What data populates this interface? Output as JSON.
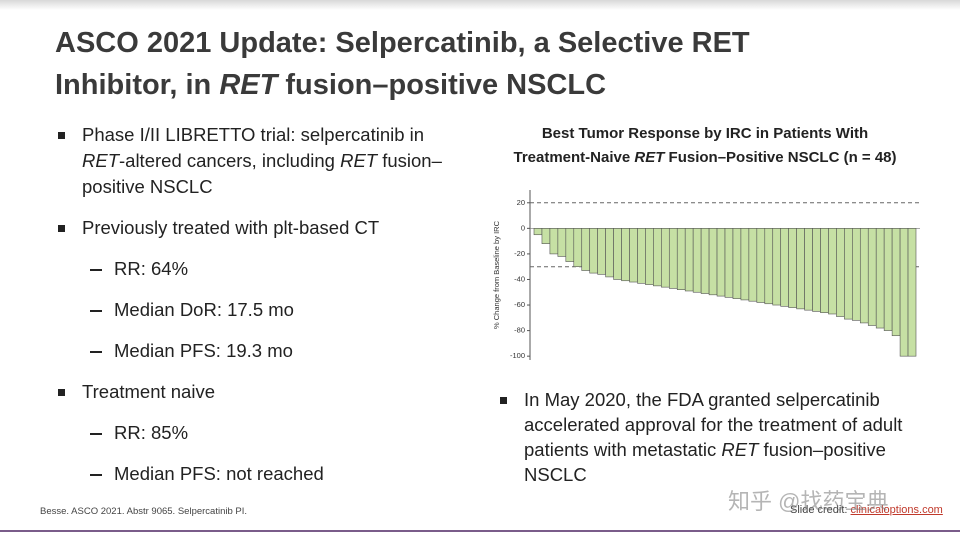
{
  "header": {
    "title": [
      [
        "ASCO 2021 Update: Selpercatinib, a Selective RET"
      ],
      [
        "Inhibitor, in ",
        {
          "text": "RET",
          "italic": true
        },
        " fusion–positive NSCLC"
      ]
    ]
  },
  "left_bullets": [
    {
      "level": 1,
      "runs": [
        "Phase I/II LIBRETTO trial: selpercatinib in ",
        {
          "text": "RET",
          "italic": true
        },
        "-altered cancers, including ",
        {
          "text": "RET",
          "italic": true
        },
        " fusion–positive NSCLC"
      ]
    },
    {
      "level": 1,
      "runs": [
        "Previously treated with plt-based CT"
      ]
    },
    {
      "level": 2,
      "runs": [
        "RR: 64%"
      ]
    },
    {
      "level": 2,
      "runs": [
        "Median DoR: 17.5 mo"
      ]
    },
    {
      "level": 2,
      "runs": [
        "Median PFS: 19.3 mo"
      ]
    },
    {
      "level": 1,
      "runs": [
        "Treatment naive"
      ]
    },
    {
      "level": 2,
      "runs": [
        "RR: 85%"
      ]
    },
    {
      "level": 2,
      "runs": [
        "Median PFS: not reached"
      ]
    }
  ],
  "right_bullets": [
    {
      "level": 1,
      "runs": [
        "In May 2020, the FDA granted selpercatinib accelerated approval for the treatment of adult patients with metastatic ",
        {
          "text": "RET",
          "italic": true
        },
        " fusion–positive NSCLC"
      ]
    }
  ],
  "chart_data": {
    "type": "waterfall",
    "title": [
      [
        "Best Tumor Response by IRC in Patients With"
      ],
      [
        "Treatment-Naive ",
        {
          "text": "RET",
          "italic": true
        },
        " Fusion–Positive NSCLC (n = 48)"
      ]
    ],
    "y_label": "% Change from Baseline by IRC",
    "values": [
      -5,
      -12,
      -20,
      -22,
      -26,
      -30,
      -33,
      -35,
      -36,
      -38,
      -40,
      -41,
      -42,
      -43,
      -44,
      -45,
      -46,
      -47,
      -48,
      -49,
      -50,
      -51,
      -52,
      -53,
      -54,
      -55,
      -56,
      -57,
      -58,
      -59,
      -60,
      -61,
      -62,
      -63,
      -64,
      -65,
      -66,
      -67,
      -69,
      -71,
      -72,
      -74,
      -76,
      -78,
      -80,
      -84,
      -100,
      -100
    ],
    "color": "#c6e0a4",
    "reference_lines": [
      20,
      -30
    ],
    "ylim": [
      -103,
      30
    ],
    "yticks": [
      20,
      0,
      -20,
      -40,
      -60,
      -80,
      -100
    ]
  },
  "footer": {
    "source": "Besse. ASCO 2021. Abstr 9065. Selpercatinib PI.",
    "credit": "Slide credit: ",
    "credit_link": "clinicaloptions.com",
    "watermark": "知乎 @找药宝典"
  }
}
